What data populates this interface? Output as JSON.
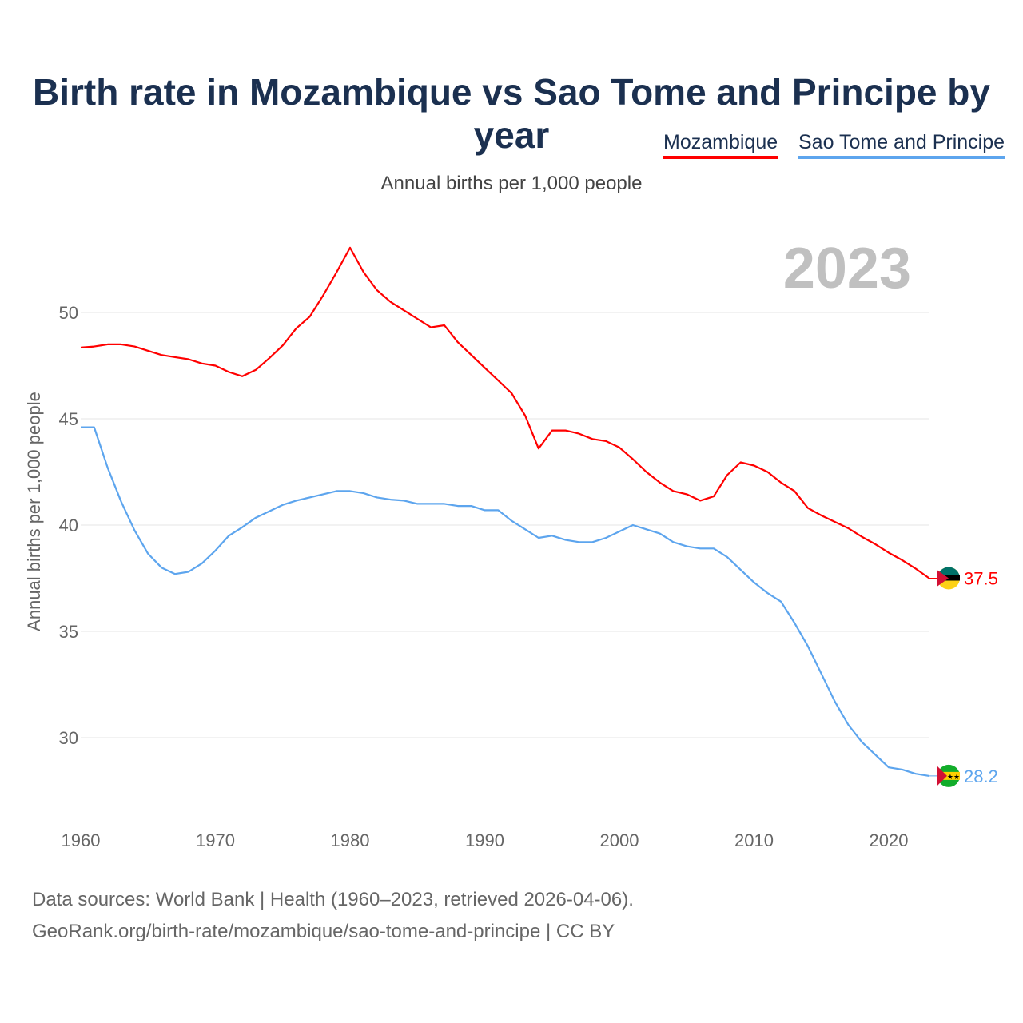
{
  "title": "Birth rate in Mozambique vs Sao Tome and Principe by year",
  "subtitle": "Annual births per 1,000 people",
  "footer": {
    "line1": "Data sources: World Bank | Health (1960–2023, retrieved 2026-04-06).",
    "line2": "GeoRank.org/birth-rate/mozambique/sao-tome-and-principe | CC BY"
  },
  "chart_data": {
    "type": "line",
    "title": "Birth rate in Mozambique vs Sao Tome and Principe by year",
    "ylabel": "Annual births per 1,000 people",
    "xlabel": "",
    "year_watermark": "2023",
    "xlim": [
      1960,
      2023
    ],
    "ylim": [
      26.5,
      55
    ],
    "xticks": [
      "1960",
      "1970",
      "1980",
      "1990",
      "2000",
      "2010",
      "2020"
    ],
    "yticks": [
      "30",
      "35",
      "40",
      "45",
      "50"
    ],
    "grid": true,
    "legend": "top-right",
    "x_start": 1960,
    "series": [
      {
        "name": "Mozambique",
        "color": "#ff0000",
        "end_label": "37.5",
        "values": [
          48.35,
          48.4,
          48.5,
          48.5,
          48.4,
          48.2,
          48.0,
          47.9,
          47.8,
          47.6,
          47.5,
          47.2,
          47.0,
          47.3,
          47.85,
          48.45,
          49.25,
          49.8,
          50.8,
          51.9,
          53.05,
          51.9,
          51.05,
          50.5,
          50.1,
          49.7,
          49.3,
          49.4,
          48.6,
          48.0,
          47.4,
          46.8,
          46.2,
          45.15,
          43.6,
          44.45,
          44.45,
          44.3,
          44.05,
          43.95,
          43.65,
          43.1,
          42.5,
          42.0,
          41.6,
          41.45,
          41.15,
          41.35,
          42.35,
          42.95,
          42.8,
          42.5,
          42.0,
          41.6,
          40.8,
          40.45,
          40.15,
          39.85,
          39.45,
          39.1,
          38.7,
          38.35,
          37.95,
          37.5
        ]
      },
      {
        "name": "Sao Tome and Principe",
        "color": "#5da5ee",
        "end_label": "28.2",
        "values": [
          44.6,
          44.6,
          42.7,
          41.1,
          39.75,
          38.65,
          38.0,
          37.7,
          37.8,
          38.2,
          38.8,
          39.5,
          39.9,
          40.35,
          40.65,
          40.95,
          41.15,
          41.3,
          41.45,
          41.6,
          41.6,
          41.5,
          41.3,
          41.2,
          41.15,
          41.0,
          41.0,
          41.0,
          40.9,
          40.9,
          40.7,
          40.7,
          40.2,
          39.8,
          39.4,
          39.5,
          39.3,
          39.2,
          39.2,
          39.4,
          39.7,
          40.0,
          39.8,
          39.6,
          39.2,
          39.0,
          38.9,
          38.9,
          38.5,
          37.9,
          37.3,
          36.8,
          36.4,
          35.4,
          34.3,
          33.0,
          31.7,
          30.6,
          29.8,
          29.2,
          28.6,
          28.5,
          28.3,
          28.2
        ]
      }
    ]
  }
}
